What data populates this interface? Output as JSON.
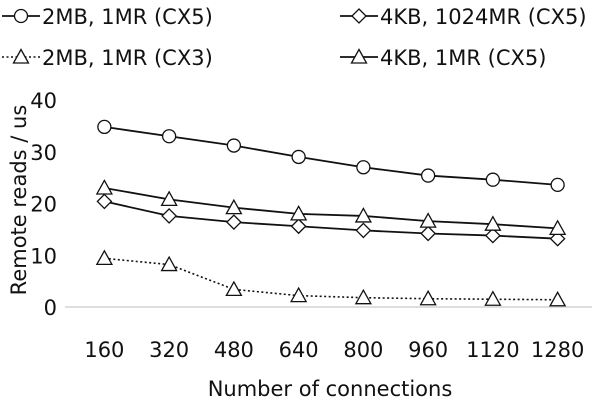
{
  "chart_data": {
    "type": "line",
    "title": "",
    "xlabel": "Number of connections",
    "ylabel": "Remote reads / us",
    "categories": [
      "160",
      "320",
      "480",
      "640",
      "800",
      "960",
      "1120",
      "1280"
    ],
    "ylim": [
      0,
      40
    ],
    "yticks": [
      0,
      10,
      20,
      30,
      40
    ],
    "grid": false,
    "legend_position": "top",
    "series": [
      {
        "name": "2MB, 1MR (CX5)",
        "marker": "circle",
        "line": "solid",
        "values": [
          34.8,
          33.0,
          31.2,
          29.0,
          27.0,
          25.4,
          24.6,
          23.6
        ]
      },
      {
        "name": "4KB, 1024MR (CX5)",
        "marker": "diamond",
        "line": "solid",
        "values": [
          20.4,
          17.6,
          16.4,
          15.6,
          14.8,
          14.2,
          13.8,
          13.2
        ]
      },
      {
        "name": "2MB, 1MR (CX3)",
        "marker": "triangle",
        "line": "dotted",
        "values": [
          9.4,
          8.2,
          3.4,
          2.2,
          1.8,
          1.6,
          1.5,
          1.4
        ]
      },
      {
        "name": "4KB, 1MR (CX5)",
        "marker": "triangle",
        "line": "solid",
        "values": [
          23.0,
          20.8,
          19.2,
          18.0,
          17.6,
          16.6,
          16.0,
          15.2
        ]
      }
    ]
  }
}
